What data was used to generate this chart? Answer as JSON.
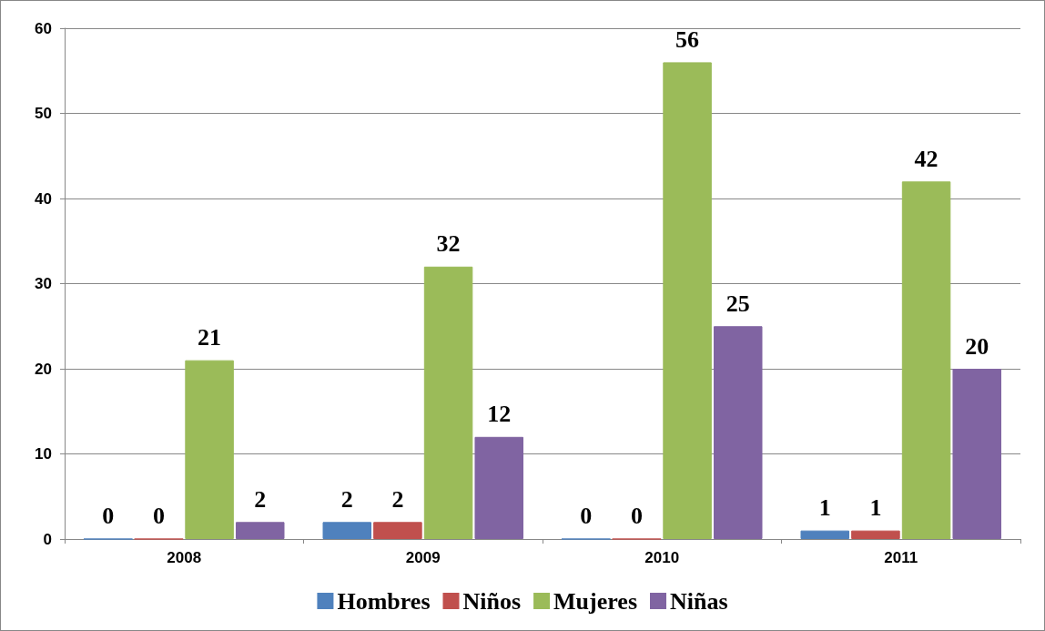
{
  "chart_data": {
    "type": "bar",
    "categories": [
      "2008",
      "2009",
      "2010",
      "2011"
    ],
    "series": [
      {
        "name": "Hombres",
        "color": "#4f81bd",
        "values": [
          0,
          2,
          0,
          1
        ]
      },
      {
        "name": "Niños",
        "color": "#c0504d",
        "values": [
          0,
          2,
          0,
          1
        ]
      },
      {
        "name": "Mujeres",
        "color": "#9bbb59",
        "values": [
          21,
          32,
          56,
          42
        ]
      },
      {
        "name": "Niñas",
        "color": "#8064a2",
        "values": [
          2,
          12,
          25,
          20
        ]
      }
    ],
    "ylim": [
      0,
      60
    ],
    "yticks": [
      0,
      10,
      20,
      30,
      40,
      50,
      60
    ],
    "grid": "y",
    "legend": "bottom",
    "data_labels": true
  }
}
